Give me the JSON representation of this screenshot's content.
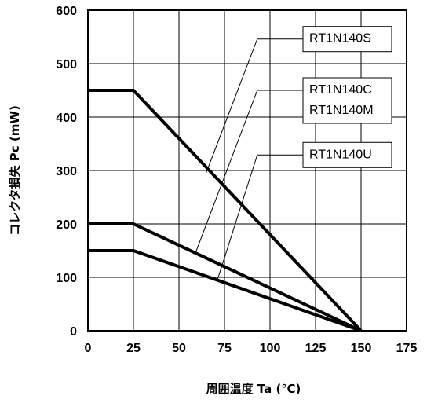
{
  "chart_data": {
    "type": "line",
    "title": "",
    "xlabel": "周囲温度 Ta (℃)",
    "ylabel": "コレクタ損失 Pc (mW)",
    "xlim": [
      0,
      175
    ],
    "ylim": [
      0,
      600
    ],
    "x_ticks": [
      0,
      25,
      50,
      75,
      100,
      125,
      150,
      175
    ],
    "y_ticks": [
      0,
      100,
      200,
      300,
      400,
      500,
      600
    ],
    "grid": true,
    "series": [
      {
        "name": "RT1N140S",
        "x": [
          0,
          25,
          150
        ],
        "y": [
          450,
          450,
          0
        ]
      },
      {
        "name": "RT1N140C RT1N140M",
        "x": [
          0,
          25,
          150
        ],
        "y": [
          200,
          200,
          0
        ]
      },
      {
        "name": "RT1N140U",
        "x": [
          0,
          25,
          150
        ],
        "y": [
          150,
          150,
          0
        ]
      }
    ],
    "annotations": [
      {
        "lines": [
          "RT1N140S"
        ],
        "target": {
          "x": 65,
          "y": 296
        },
        "elbow": {
          "x": 93,
          "y": 546
        }
      },
      {
        "lines": [
          "RT1N140C",
          "RT1N140M"
        ],
        "target": {
          "x": 59,
          "y": 145
        },
        "elbow": {
          "x": 93,
          "y": 450
        }
      },
      {
        "lines": [
          "RT1N140U"
        ],
        "target": {
          "x": 71,
          "y": 94
        },
        "elbow": {
          "x": 93,
          "y": 329
        }
      }
    ]
  }
}
